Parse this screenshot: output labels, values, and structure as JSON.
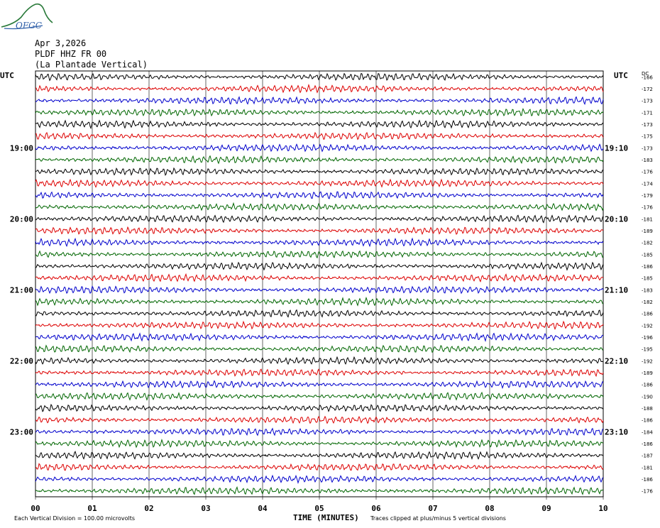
{
  "logo": {
    "text": "OFGC"
  },
  "header": {
    "date": "Apr 3,2026",
    "station": "PLDF HHZ FR 00",
    "location": "(La Plantade Vertical)"
  },
  "chart_data": {
    "type": "line",
    "title": "",
    "left_axis_label": "UTC",
    "right_axis_label": "UTC",
    "dc_label": "DC",
    "xlabel": "TIME (MINUTES)",
    "x_ticks": [
      "00",
      "01",
      "02",
      "03",
      "04",
      "05",
      "06",
      "07",
      "08",
      "09",
      "10"
    ],
    "xlim": [
      0,
      10
    ],
    "left_hour_labels": [
      {
        "label": "19:00",
        "trace": 6
      },
      {
        "label": "20:00",
        "trace": 12
      },
      {
        "label": "21:00",
        "trace": 18
      },
      {
        "label": "22:00",
        "trace": 24
      },
      {
        "label": "23:00",
        "trace": 30
      }
    ],
    "right_hour_labels": [
      {
        "label": "19:10",
        "trace": 6
      },
      {
        "label": "20:10",
        "trace": 12
      },
      {
        "label": "21:10",
        "trace": 18
      },
      {
        "label": "22:10",
        "trace": 24
      },
      {
        "label": "23:10",
        "trace": 30
      }
    ],
    "trace_colors": [
      "#000000",
      "#dd0000",
      "#0000cc",
      "#006600"
    ],
    "dc_offsets": [
      -166,
      -172,
      -173,
      -171,
      -173,
      -175,
      -173,
      -183,
      -176,
      -174,
      -179,
      -176,
      -181,
      -189,
      -182,
      -185,
      -186,
      -185,
      -183,
      -182,
      -186,
      -192,
      -196,
      -195,
      -192,
      -189,
      -186,
      -190,
      -188,
      -186,
      -184,
      -186,
      -187,
      -181,
      -186,
      -176
    ],
    "footer_left": "Each Vertical Division =  100.00 microvolts",
    "footer_right": "Traces clipped at plus/minus 5 vertical divisions"
  }
}
